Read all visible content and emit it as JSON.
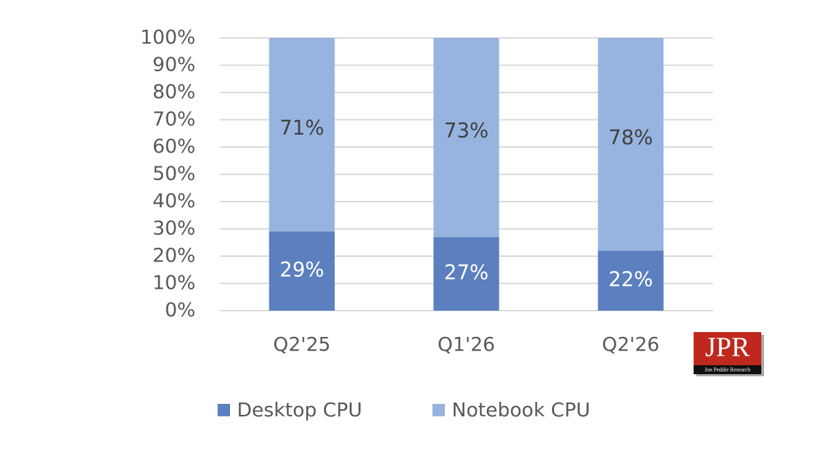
{
  "chart_data": {
    "type": "stacked_bar",
    "categories": [
      "Q2'25",
      "Q1'26",
      "Q2'26"
    ],
    "series": [
      {
        "name": "Desktop CPU",
        "color": "#5b7fbf",
        "values": [
          29,
          27,
          22
        ],
        "value_labels": [
          "29%",
          "27%",
          "22%"
        ]
      },
      {
        "name": "Notebook CPU",
        "color": "#97b4e0",
        "values": [
          71,
          73,
          78
        ],
        "value_labels": [
          "71%",
          "73%",
          "78%"
        ]
      }
    ],
    "ylim": [
      0,
      100
    ],
    "yticks": [
      {
        "value": 0,
        "label": "0%"
      },
      {
        "value": 10,
        "label": "10%"
      },
      {
        "value": 20,
        "label": "20%"
      },
      {
        "value": 30,
        "label": "30%"
      },
      {
        "value": 40,
        "label": "40%"
      },
      {
        "value": 50,
        "label": "50%"
      },
      {
        "value": 60,
        "label": "60%"
      },
      {
        "value": 70,
        "label": "70%"
      },
      {
        "value": 80,
        "label": "80%"
      },
      {
        "value": 90,
        "label": "90%"
      },
      {
        "value": 100,
        "label": "100%"
      }
    ],
    "grid": true,
    "legend": "bottom",
    "logo": {
      "text": "JPR",
      "subtext": "Jon Peddie Research"
    }
  }
}
